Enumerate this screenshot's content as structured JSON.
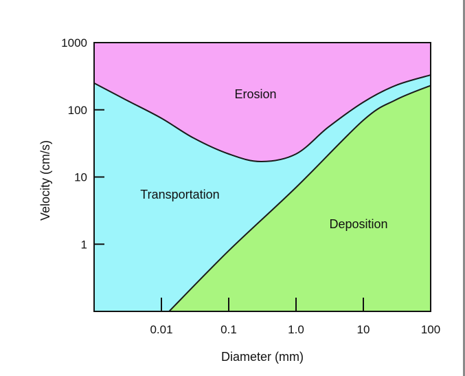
{
  "chart_data": {
    "type": "area",
    "xlabel": "Diameter (mm)",
    "ylabel": "Velocity (cm/s)",
    "x_scale": "log",
    "y_scale": "log",
    "xlim": [
      0.001,
      100
    ],
    "ylim": [
      0.1,
      1000
    ],
    "x_tick_labels": [
      "0.01",
      "0.1",
      "1.0",
      "10",
      "100"
    ],
    "y_tick_labels": [
      "1000",
      "100",
      "10",
      "1"
    ],
    "grid": false,
    "regions": [
      {
        "name": "Erosion",
        "color": "#f7a6f7"
      },
      {
        "name": "Transportation",
        "color": "#9df5fb"
      },
      {
        "name": "Deposition",
        "color": "#a9f57f"
      }
    ],
    "series": [
      {
        "name": "Erosion",
        "x": [
          0.001,
          0.003,
          0.01,
          0.03,
          0.1,
          0.3,
          1.0,
          3,
          10,
          30,
          100
        ],
        "y": [
          250,
          140,
          75,
          38,
          22,
          17,
          22,
          55,
          130,
          230,
          330
        ]
      },
      {
        "name": "Deposition",
        "x": [
          0.013,
          0.1,
          1.0,
          10,
          30,
          100
        ],
        "y": [
          0.1,
          0.8,
          7,
          70,
          140,
          230
        ]
      }
    ]
  }
}
